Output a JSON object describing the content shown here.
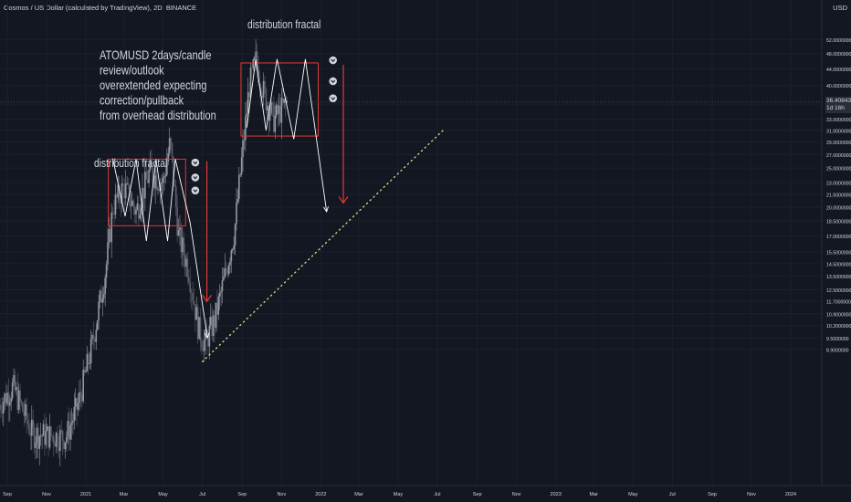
{
  "header": {
    "symbol_line": "Cosmos / US Dollar (calculated by TradingView), 2D, BINANCE"
  },
  "currency": "USD",
  "price_tag": {
    "price": "36.4084312",
    "countdown": "1d 16h"
  },
  "annotations": {
    "main_note": [
      "ATOMUSD 2days/candle",
      "review/outlook",
      "overextended expecting",
      "correction/pullback",
      "from overhead distribution"
    ],
    "fractal_label_1": "distribution fractal",
    "fractal_label_2": "distribution fractal"
  },
  "colors": {
    "background": "#131722",
    "candle": "#787b86",
    "box": "#e53935",
    "trend_dots": "#f0d890",
    "arrow": "#ffffff",
    "text": "#d1d4dc"
  },
  "chart_data": {
    "type": "candlestick",
    "title": "Cosmos / US Dollar (calculated by TradingView), 2D, BINANCE",
    "y_scale": "log",
    "ylim": [
      8.3,
      52
    ],
    "y_ticks": [
      "52.0000000",
      "48.0000000",
      "44.0000000",
      "40.0000000",
      "36.0000000",
      "33.0000000",
      "31.0000000",
      "29.0000000",
      "27.0000000",
      "25.0000000",
      "23.0000000",
      "21.5000000",
      "20.0000000",
      "18.5000000",
      "17.0000000",
      "15.5000000",
      "14.5000000",
      "13.5000000",
      "12.5000000",
      "11.7000000",
      "10.9000000",
      "10.2000000",
      "9.5000000",
      "8.9000000"
    ],
    "x_ticks": [
      "Sep",
      "Nov",
      "2021",
      "Mar",
      "May",
      "Jul",
      "Sep",
      "Nov",
      "2022",
      "Mar",
      "May",
      "Jul",
      "Sep",
      "Nov",
      "2023",
      "Mar",
      "May",
      "Jul",
      "Sep",
      "Nov",
      "2024"
    ],
    "last_price": 36.4084312,
    "price_path": [
      {
        "date": "2020-08-20",
        "price": 6.5
      },
      {
        "date": "2020-09-10",
        "price": 7.2
      },
      {
        "date": "2020-10-10",
        "price": 5.5
      },
      {
        "date": "2020-12-01",
        "price": 5.4
      },
      {
        "date": "2020-12-20",
        "price": 6.5
      },
      {
        "date": "2021-01-10",
        "price": 9.0
      },
      {
        "date": "2021-02-01",
        "price": 14.0
      },
      {
        "date": "2021-02-12",
        "price": 20.0
      },
      {
        "date": "2021-03-01",
        "price": 22.5
      },
      {
        "date": "2021-03-20",
        "price": 19.5
      },
      {
        "date": "2021-04-10",
        "price": 24.5
      },
      {
        "date": "2021-05-01",
        "price": 23.0
      },
      {
        "date": "2021-05-12",
        "price": 29.0
      },
      {
        "date": "2021-05-25",
        "price": 17.0
      },
      {
        "date": "2021-06-10",
        "price": 14.0
      },
      {
        "date": "2021-06-25",
        "price": 10.0
      },
      {
        "date": "2021-07-05",
        "price": 9.2
      },
      {
        "date": "2021-07-20",
        "price": 10.5
      },
      {
        "date": "2021-08-05",
        "price": 13.5
      },
      {
        "date": "2021-08-20",
        "price": 17.5
      },
      {
        "date": "2021-09-01",
        "price": 27.0
      },
      {
        "date": "2021-09-12",
        "price": 40.0
      },
      {
        "date": "2021-09-22",
        "price": 46.0
      },
      {
        "date": "2021-10-05",
        "price": 38.0
      },
      {
        "date": "2021-10-20",
        "price": 33.0
      },
      {
        "date": "2021-11-10",
        "price": 36.4
      }
    ],
    "boxes": [
      {
        "label": "distribution fractal",
        "x_start": "2021-02-05",
        "x_end": "2021-06-05",
        "y_low": 18.0,
        "y_high": 26.3
      },
      {
        "label": "distribution fractal",
        "x_start": "2021-08-30",
        "x_end": "2021-12-28",
        "y_low": 30.0,
        "y_high": 45.5
      }
    ],
    "zigzag_1": [
      {
        "date": "2021-02-12",
        "price": 26.3
      },
      {
        "date": "2021-03-03",
        "price": 19.0
      },
      {
        "date": "2021-03-20",
        "price": 26.3
      },
      {
        "date": "2021-04-05",
        "price": 16.5
      },
      {
        "date": "2021-04-20",
        "price": 26.3
      },
      {
        "date": "2021-05-08",
        "price": 16.5
      },
      {
        "date": "2021-05-20",
        "price": 26.3
      },
      {
        "date": "2021-06-12",
        "price": 18.3
      },
      {
        "date": "2021-07-09",
        "price": 9.5
      }
    ],
    "zigzag_2": [
      {
        "date": "2021-09-08",
        "price": 31.5
      },
      {
        "date": "2021-09-22",
        "price": 46.5
      },
      {
        "date": "2021-10-08",
        "price": 31.0
      },
      {
        "date": "2021-10-25",
        "price": 46.5
      },
      {
        "date": "2021-11-20",
        "price": 29.5
      },
      {
        "date": "2021-12-08",
        "price": 46.5
      },
      {
        "date": "2022-01-10",
        "price": 19.5
      }
    ],
    "red_arrows": [
      {
        "date": "2021-07-08",
        "from": 26.0,
        "to": 11.7
      },
      {
        "date": "2022-02-05",
        "from": 45.0,
        "to": 20.5
      }
    ],
    "down_markers": [
      {
        "date": "2021-06-20",
        "price": 25.8
      },
      {
        "date": "2021-06-20",
        "price": 23.7
      },
      {
        "date": "2021-06-20",
        "price": 22.0
      },
      {
        "date": "2022-01-20",
        "price": 46.2
      },
      {
        "date": "2022-01-20",
        "price": 41.0
      },
      {
        "date": "2022-01-20",
        "price": 37.2
      }
    ],
    "trendline": {
      "style": "dotted",
      "points": [
        {
          "date": "2021-07-01",
          "price": 8.3
        },
        {
          "date": "2022-07-10",
          "price": 31.0
        }
      ]
    }
  }
}
